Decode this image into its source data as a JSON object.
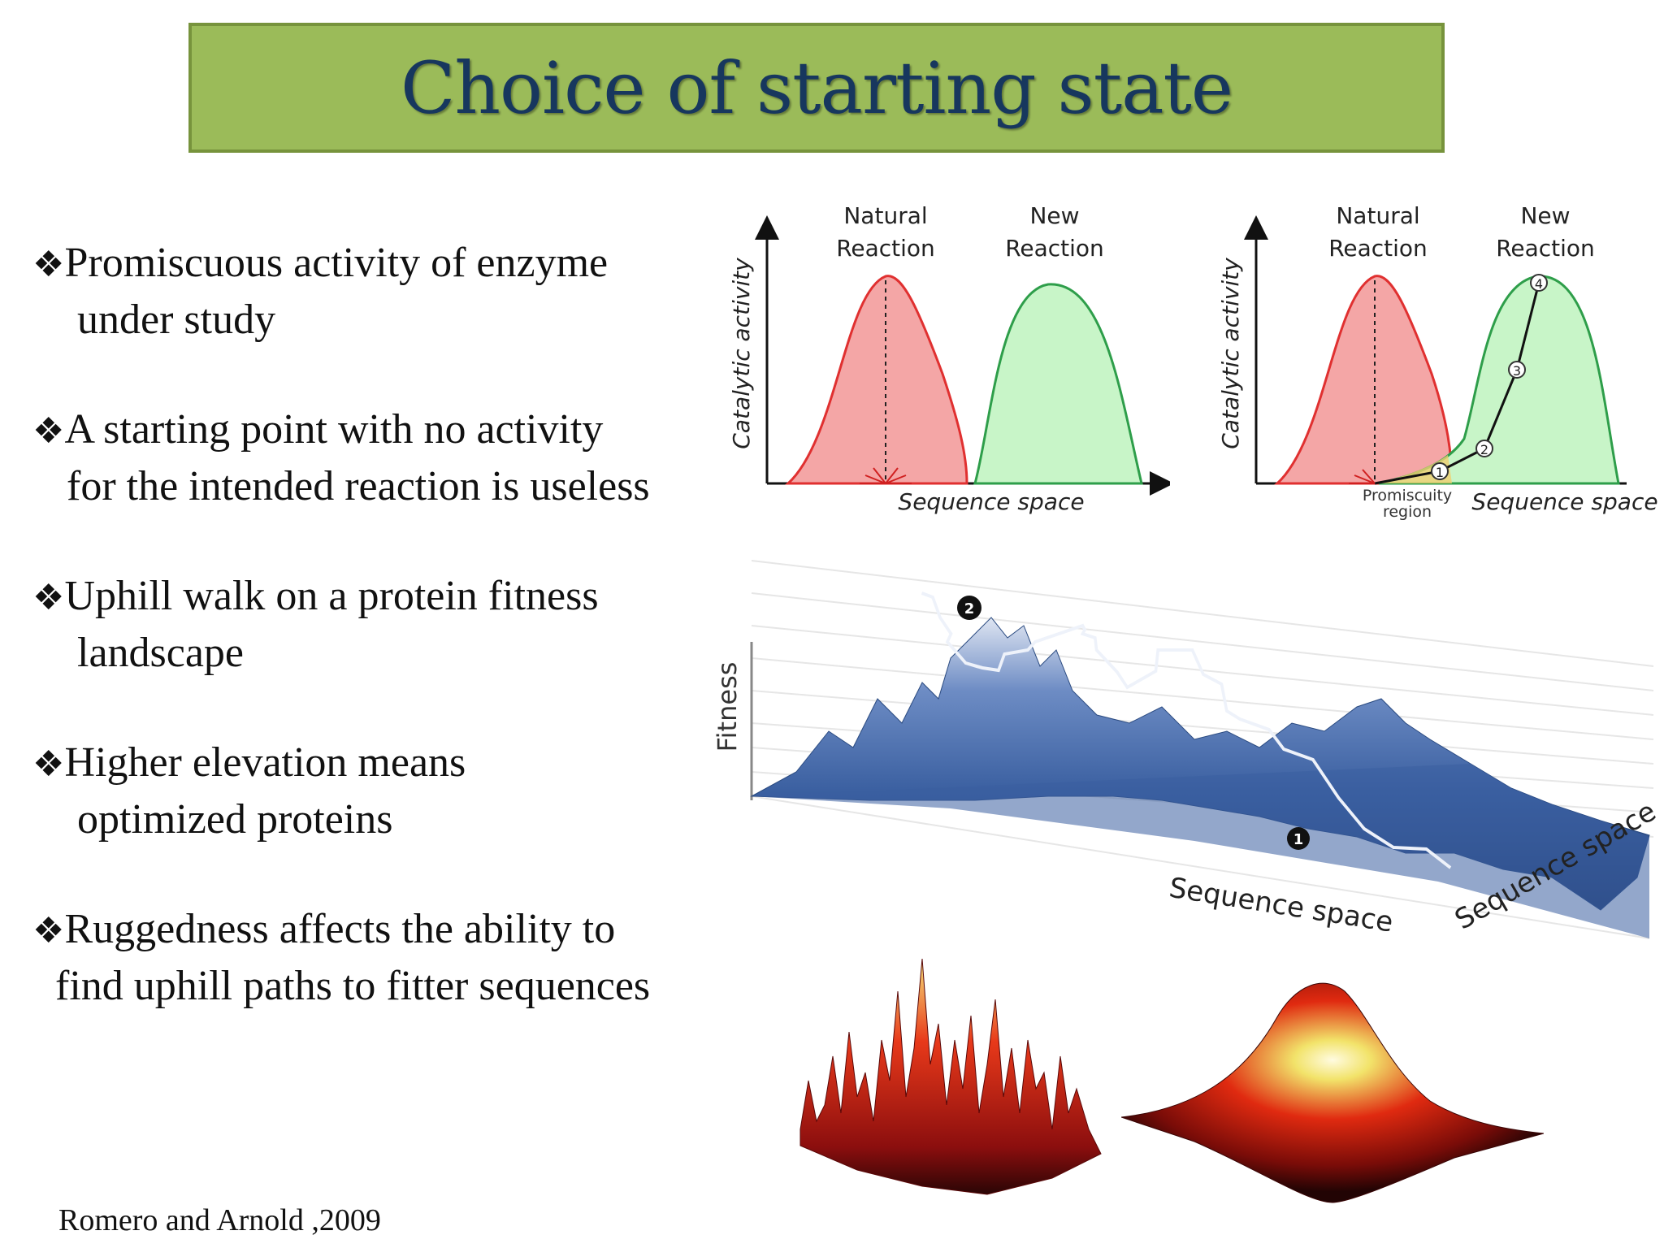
{
  "title": "Choice of starting state",
  "bullets": [
    {
      "line1": "Promiscuous activity of enzyme",
      "line2": "under study"
    },
    {
      "line1": "A starting point with no activity",
      "line2": "for the intended reaction is useless"
    },
    {
      "line1": "Uphill walk on a protein fitness",
      "line2": "landscape"
    },
    {
      "line1": "Higher elevation means",
      "line2": "optimized proteins"
    },
    {
      "line1": "Ruggedness affects the ability to",
      "line2": "find uphill paths to fitter sequences"
    }
  ],
  "bullet_marker": "❖",
  "citation": "Romero and Arnold ,2009",
  "diagram_left": {
    "natural_label_1": "Natural",
    "natural_label_2": "Reaction",
    "new_label_1": "New",
    "new_label_2": "Reaction",
    "y_axis": "Catalytic activity",
    "x_axis": "Sequence space"
  },
  "diagram_right": {
    "natural_label_1": "Natural",
    "natural_label_2": "Reaction",
    "new_label_1": "New",
    "new_label_2": "Reaction",
    "y_axis": "Catalytic activity",
    "x_axis": "Sequence space",
    "promiscuity_1": "Promiscuity",
    "promiscuity_2": "region",
    "steps": [
      "1",
      "2",
      "3",
      "4"
    ]
  },
  "landscape": {
    "y_axis": "Fitness",
    "x_axis": "Sequence space",
    "z_axis": "Sequence space",
    "markers": [
      "1",
      "2"
    ]
  },
  "colors": {
    "title_bg": "#9bbb59",
    "title_text": "#17375e",
    "natural_fill": "#f4a6a6",
    "natural_stroke": "#e03030",
    "new_fill": "#c8f5c8",
    "new_stroke": "#2e9e4a",
    "landscape_blue": "#3a5fa0"
  }
}
